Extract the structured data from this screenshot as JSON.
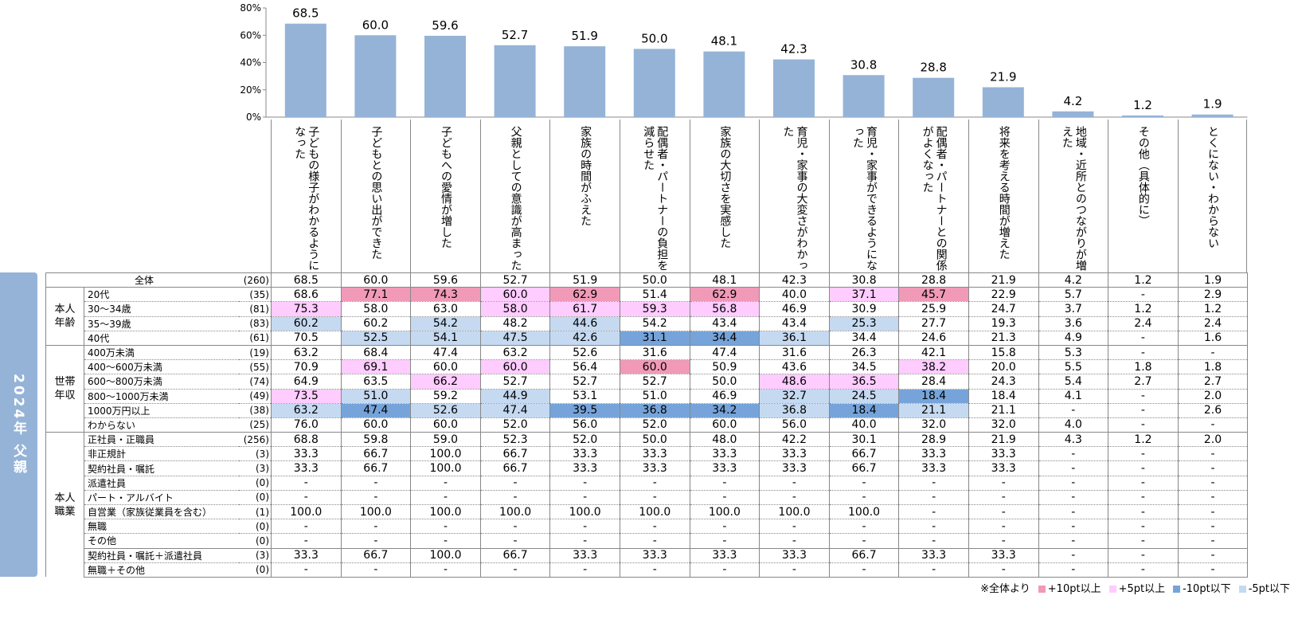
{
  "side_title": "2024年 父親",
  "colors": {
    "bar": "#95b3d7",
    "h10": "#f09ab8",
    "h5": "#ffccff",
    "l10": "#76a4da",
    "l5": "#c5d9f1"
  },
  "chart_data": {
    "type": "bar",
    "yticks": [
      "0%",
      "20%",
      "40%",
      "60%",
      "80%"
    ],
    "ylim": [
      0,
      80
    ],
    "categories": [
      "子どもの様子がわかるようになった",
      "子どもとの思い出ができた",
      "子どもへの愛情が増した",
      "父親としての意識が高まった",
      "家族の時間がふえた",
      "配偶者・パートナーの負担を減らせた",
      "家族の大切さを実感した",
      "育児・家事の大変さがわかった",
      "育児・家事ができるようになった",
      "配偶者・パートナーとの関係がよくなった",
      "将来を考える時間が増えた",
      "地域・近所とのつながりが増えた",
      "その他（具体的に）",
      "とくにない・わからない"
    ],
    "values": [
      68.5,
      60.0,
      59.6,
      52.7,
      51.9,
      50.0,
      48.1,
      42.3,
      30.8,
      28.8,
      21.9,
      4.2,
      1.2,
      1.9
    ],
    "labels": [
      "68.5",
      "60.0",
      "59.6",
      "52.7",
      "51.9",
      "50.0",
      "48.1",
      "42.3",
      "30.8",
      "28.8",
      "21.9",
      "4.2",
      "1.2",
      "1.9"
    ]
  },
  "table": {
    "groups": [
      {
        "label": "",
        "rows": [
          {
            "label": "全体",
            "n": "(260)",
            "v": [
              "68.5",
              "60.0",
              "59.6",
              "52.7",
              "51.9",
              "50.0",
              "48.1",
              "42.3",
              "30.8",
              "28.8",
              "21.9",
              "4.2",
              "1.2",
              "1.9"
            ],
            "c": ".............."
          }
        ]
      },
      {
        "label": "本人年齢",
        "rows": [
          {
            "label": "20代",
            "n": "(35)",
            "v": [
              "68.6",
              "77.1",
              "74.3",
              "60.0",
              "62.9",
              "51.4",
              "62.9",
              "40.0",
              "37.1",
              "45.7",
              "22.9",
              "5.7",
              "-",
              "2.9"
            ],
            "c": ".PPpP.P.pP...."
          },
          {
            "label": "30～34歳",
            "n": "(81)",
            "v": [
              "75.3",
              "58.0",
              "63.0",
              "58.0",
              "61.7",
              "59.3",
              "56.8",
              "46.9",
              "30.9",
              "25.9",
              "24.7",
              "3.7",
              "1.2",
              "1.2"
            ],
            "c": "p..pppp......."
          },
          {
            "label": "35～39歳",
            "n": "(83)",
            "v": [
              "60.2",
              "60.2",
              "54.2",
              "48.2",
              "44.6",
              "54.2",
              "43.4",
              "43.4",
              "25.3",
              "27.7",
              "19.3",
              "3.6",
              "2.4",
              "2.4"
            ],
            "c": "b.b.b...b....."
          },
          {
            "label": "40代",
            "n": "(61)",
            "v": [
              "70.5",
              "52.5",
              "54.1",
              "47.5",
              "42.6",
              "31.1",
              "34.4",
              "36.1",
              "34.4",
              "24.6",
              "21.3",
              "4.9",
              "-",
              "1.6"
            ],
            "c": ".bbbbBBb......"
          }
        ]
      },
      {
        "label": "世帯年収",
        "rows": [
          {
            "label": "400万未満",
            "n": "(19)",
            "v": [
              "63.2",
              "68.4",
              "47.4",
              "63.2",
              "52.6",
              "31.6",
              "47.4",
              "31.6",
              "26.3",
              "42.1",
              "15.8",
              "5.3",
              "-",
              "-"
            ],
            "c": ".............."
          },
          {
            "label": "400～600万未満",
            "n": "(55)",
            "v": [
              "70.9",
              "69.1",
              "60.0",
              "60.0",
              "56.4",
              "60.0",
              "50.9",
              "43.6",
              "34.5",
              "38.2",
              "20.0",
              "5.5",
              "1.8",
              "1.8"
            ],
            "c": ".p.p.P...p...."
          },
          {
            "label": "600～800万未満",
            "n": "(74)",
            "v": [
              "64.9",
              "63.5",
              "66.2",
              "52.7",
              "52.7",
              "52.7",
              "50.0",
              "48.6",
              "36.5",
              "28.4",
              "24.3",
              "5.4",
              "2.7",
              "2.7"
            ],
            "c": "..p....pp....."
          },
          {
            "label": "800～1000万未満",
            "n": "(49)",
            "v": [
              "73.5",
              "51.0",
              "59.2",
              "44.9",
              "53.1",
              "51.0",
              "46.9",
              "32.7",
              "24.5",
              "18.4",
              "18.4",
              "4.1",
              "-",
              "2.0"
            ],
            "c": "pb.b...bbB...."
          },
          {
            "label": "1000万円以上",
            "n": "(38)",
            "v": [
              "63.2",
              "47.4",
              "52.6",
              "47.4",
              "39.5",
              "36.8",
              "34.2",
              "36.8",
              "18.4",
              "21.1",
              "21.1",
              "-",
              "-",
              "2.6"
            ],
            "c": "bBbbBBBbBb...."
          },
          {
            "label": "わからない",
            "n": "(25)",
            "v": [
              "76.0",
              "60.0",
              "60.0",
              "52.0",
              "56.0",
              "52.0",
              "60.0",
              "56.0",
              "40.0",
              "32.0",
              "32.0",
              "4.0",
              "-",
              "-"
            ],
            "c": ".............."
          }
        ]
      },
      {
        "label": "本人職業",
        "rows": [
          {
            "label": "正社員・正職員",
            "n": "(256)",
            "v": [
              "68.8",
              "59.8",
              "59.0",
              "52.3",
              "52.0",
              "50.0",
              "48.0",
              "42.2",
              "30.1",
              "28.9",
              "21.9",
              "4.3",
              "1.2",
              "2.0"
            ],
            "c": ".............."
          },
          {
            "label": "非正規計",
            "n": "(3)",
            "v": [
              "33.3",
              "66.7",
              "100.0",
              "66.7",
              "33.3",
              "33.3",
              "33.3",
              "33.3",
              "66.7",
              "33.3",
              "33.3",
              "-",
              "-",
              "-"
            ],
            "c": ".............."
          },
          {
            "label": "契約社員・嘱託",
            "n": "(3)",
            "v": [
              "33.3",
              "66.7",
              "100.0",
              "66.7",
              "33.3",
              "33.3",
              "33.3",
              "33.3",
              "66.7",
              "33.3",
              "33.3",
              "-",
              "-",
              "-"
            ],
            "c": ".............."
          },
          {
            "label": "派遣社員",
            "n": "(0)",
            "v": [
              "-",
              "-",
              "-",
              "-",
              "-",
              "-",
              "-",
              "-",
              "-",
              "-",
              "-",
              "-",
              "-",
              "-"
            ],
            "c": ".............."
          },
          {
            "label": "パート・アルバイト",
            "n": "(0)",
            "v": [
              "-",
              "-",
              "-",
              "-",
              "-",
              "-",
              "-",
              "-",
              "-",
              "-",
              "-",
              "-",
              "-",
              "-"
            ],
            "c": ".............."
          },
          {
            "label": "自営業（家族従業員を含む）",
            "n": "(1)",
            "v": [
              "100.0",
              "100.0",
              "100.0",
              "100.0",
              "100.0",
              "100.0",
              "100.0",
              "100.0",
              "100.0",
              "-",
              "-",
              "-",
              "-",
              "-"
            ],
            "c": ".............."
          },
          {
            "label": "無職",
            "n": "(0)",
            "v": [
              "-",
              "-",
              "-",
              "-",
              "-",
              "-",
              "-",
              "-",
              "-",
              "-",
              "-",
              "-",
              "-",
              "-"
            ],
            "c": ".............."
          },
          {
            "label": "その他",
            "n": "(0)",
            "v": [
              "-",
              "-",
              "-",
              "-",
              "-",
              "-",
              "-",
              "-",
              "-",
              "-",
              "-",
              "-",
              "-",
              "-"
            ],
            "c": ".............."
          },
          {
            "label": "契約社員・嘱託＋派遣社員",
            "n": "(3)",
            "v": [
              "33.3",
              "66.7",
              "100.0",
              "66.7",
              "33.3",
              "33.3",
              "33.3",
              "33.3",
              "66.7",
              "33.3",
              "33.3",
              "-",
              "-",
              "-"
            ],
            "c": "..............",
            "solid": true
          },
          {
            "label": "無職＋その他",
            "n": "(0)",
            "v": [
              "-",
              "-",
              "-",
              "-",
              "-",
              "-",
              "-",
              "-",
              "-",
              "-",
              "-",
              "-",
              "-",
              "-"
            ],
            "c": ".............."
          }
        ]
      }
    ]
  },
  "legend": {
    "note": "※全体より",
    "items": [
      {
        "key": "h10",
        "label": "+10pt以上"
      },
      {
        "key": "h5",
        "label": "+5pt以上"
      },
      {
        "key": "l10",
        "label": "-10pt以下"
      },
      {
        "key": "l5",
        "label": "-5pt以下"
      }
    ]
  }
}
